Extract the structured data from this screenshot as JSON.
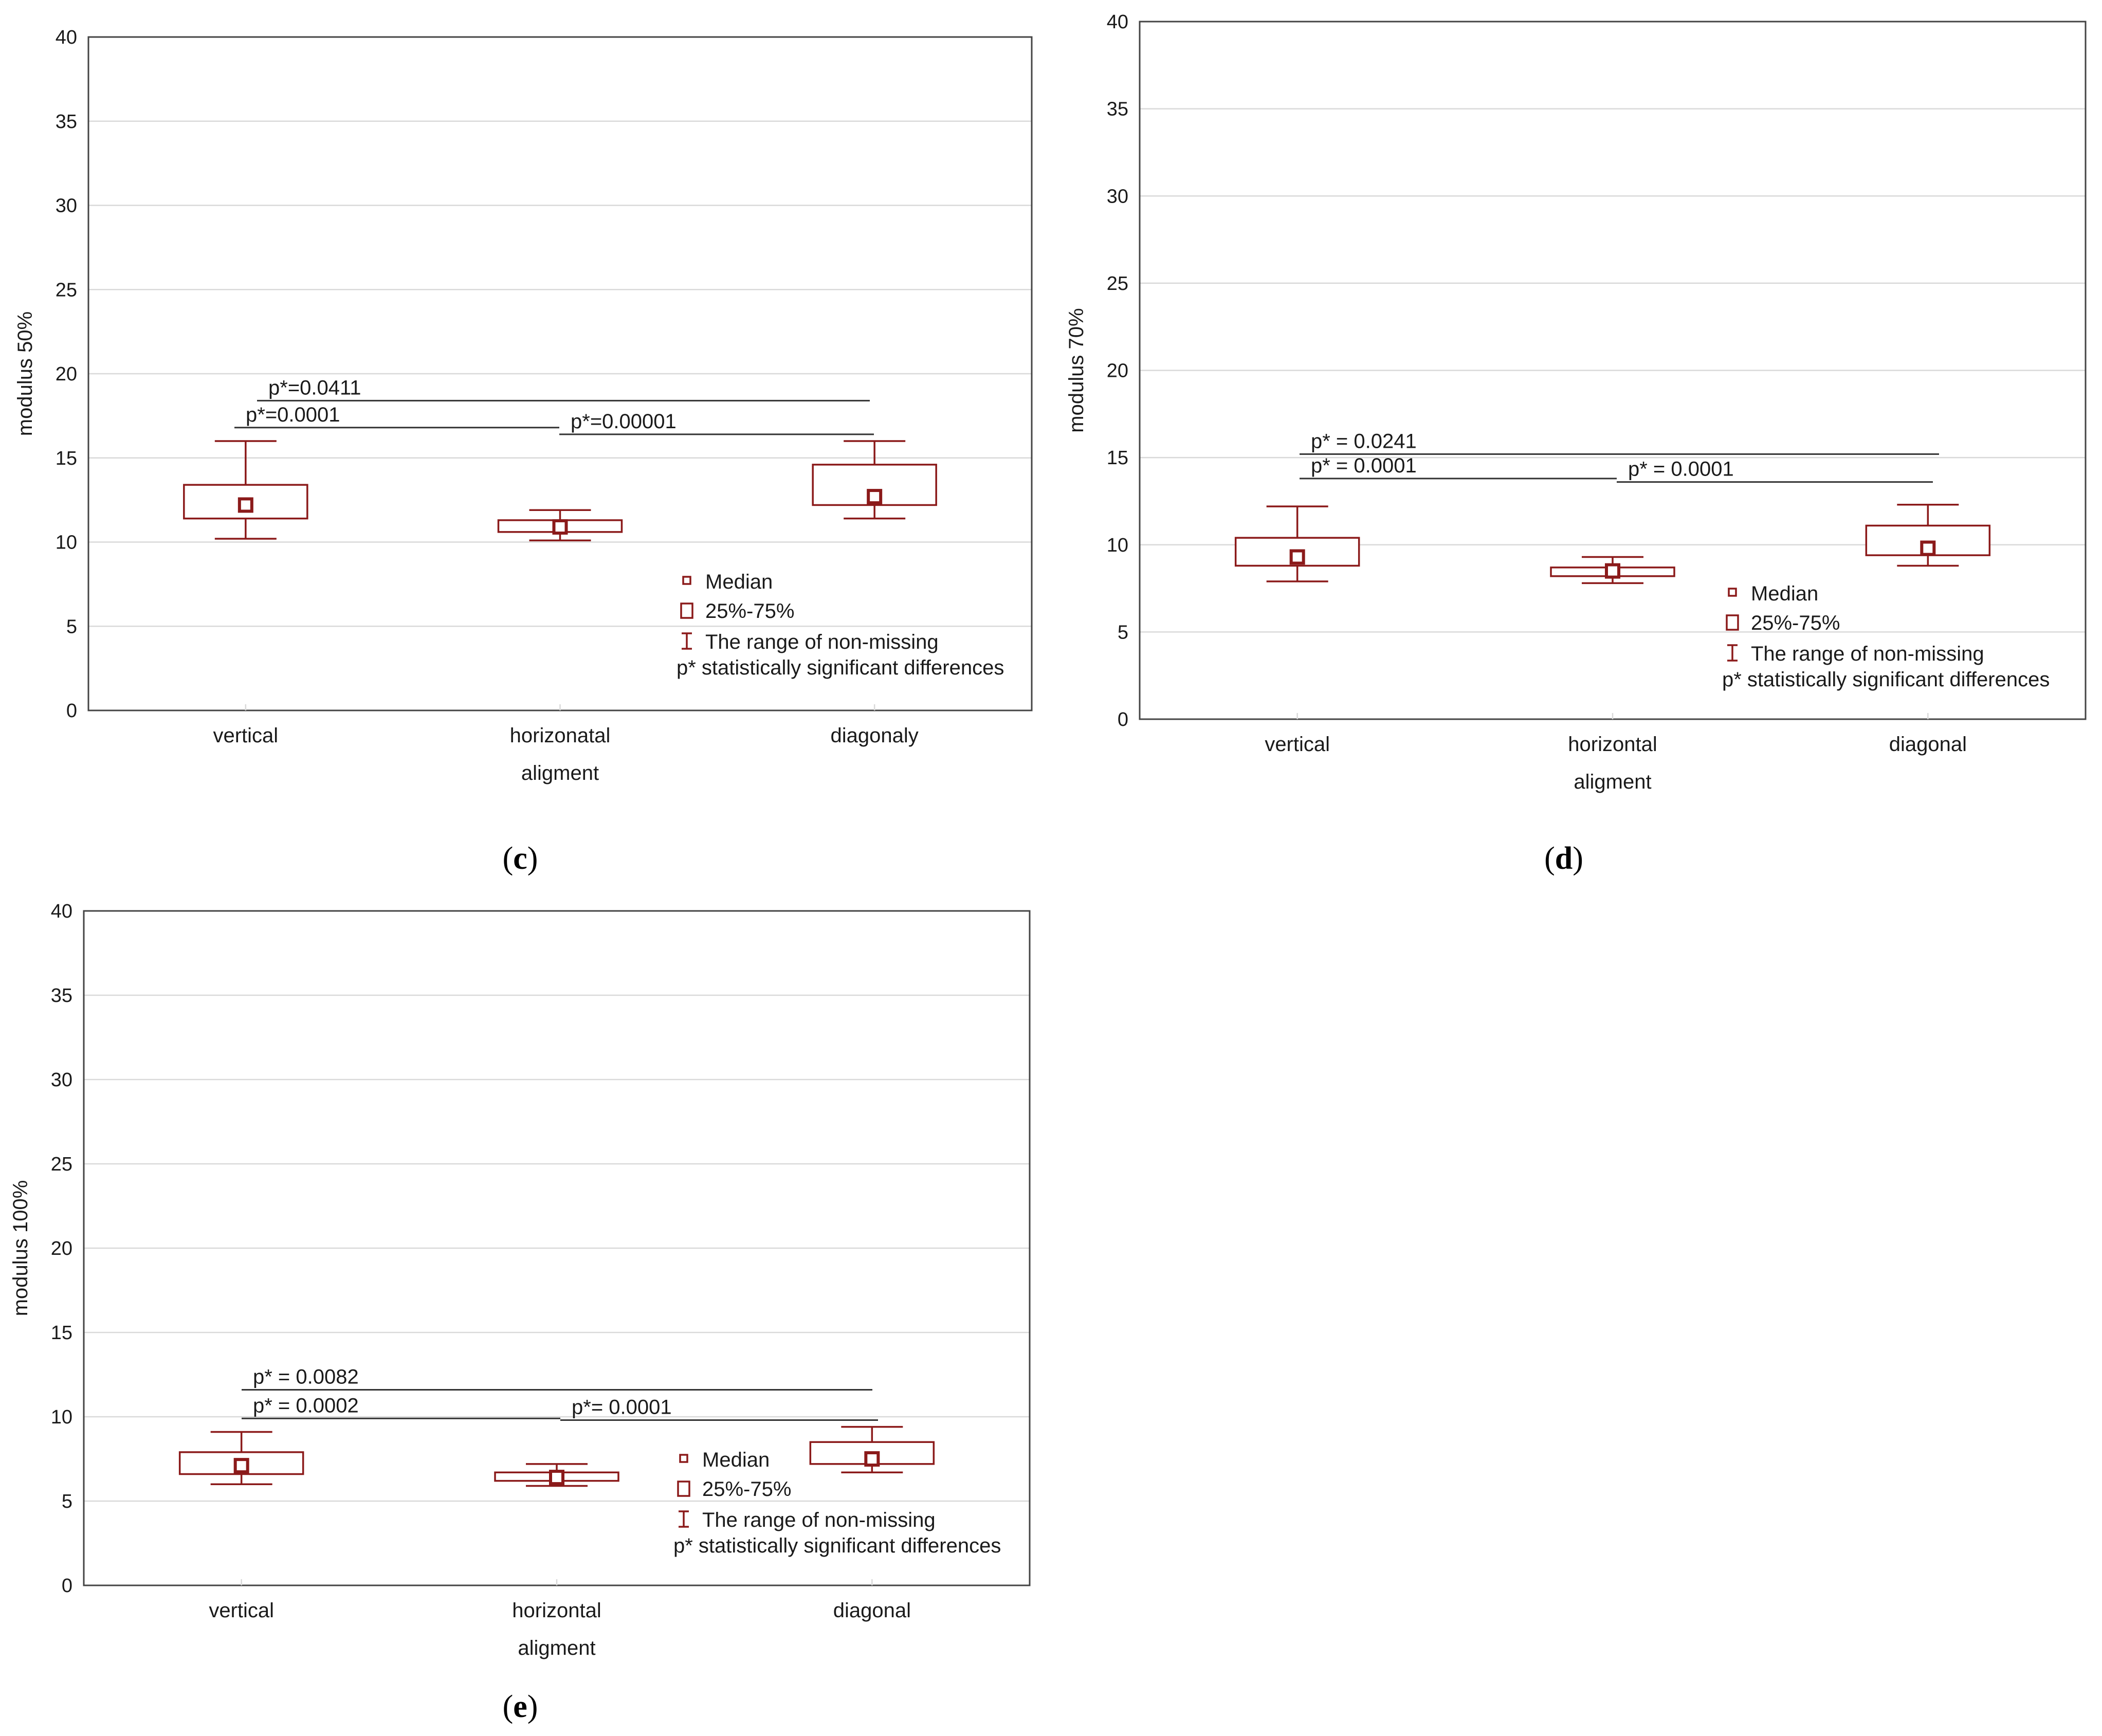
{
  "legend": {
    "median": "Median",
    "iqr": "25%-75%",
    "range": "The range of non-missing",
    "significance": "p* statistically significant differences"
  },
  "colors": {
    "box": "#8b1a1a",
    "grid": "#d9d9d9",
    "frame": "#444444"
  },
  "chart_data": [
    {
      "id": "c",
      "panel_label": {
        "open": "(",
        "letter": "c",
        "close": ")"
      },
      "type": "box",
      "ylabel": "modulus 50%",
      "xlabel": "aligment",
      "ylim": [
        0,
        40
      ],
      "yticks": [
        0,
        5,
        10,
        15,
        20,
        25,
        30,
        35,
        40
      ],
      "categories": [
        "vertical",
        "horizonatal",
        "diagonaly"
      ],
      "series": [
        {
          "name": "vertical",
          "min": 10.2,
          "q1": 11.4,
          "median": 12.2,
          "q3": 13.4,
          "max": 16.0
        },
        {
          "name": "horizonatal",
          "min": 10.1,
          "q1": 10.6,
          "median": 10.9,
          "q3": 11.3,
          "max": 11.9
        },
        {
          "name": "diagonaly",
          "min": 11.4,
          "q1": 12.2,
          "median": 12.7,
          "q3": 14.6,
          "max": 16.0
        }
      ],
      "significance": [
        {
          "from": 0,
          "to": 2,
          "y": 18.4,
          "label": "p*=0.0411"
        },
        {
          "from": 0,
          "to": 1,
          "y": 16.8,
          "label": "p*=0.0001"
        },
        {
          "from": 1,
          "to": 2,
          "y": 16.4,
          "label": "p*=0.00001"
        }
      ]
    },
    {
      "id": "d",
      "panel_label": {
        "open": "(",
        "letter": "d",
        "close": ")"
      },
      "type": "box",
      "ylabel": "modulus 70%",
      "xlabel": "aligment",
      "ylim": [
        0,
        40
      ],
      "yticks": [
        0,
        5,
        10,
        15,
        20,
        25,
        30,
        35,
        40
      ],
      "categories": [
        "vertical",
        "horizontal",
        "diagonal"
      ],
      "series": [
        {
          "name": "vertical",
          "min": 7.9,
          "q1": 8.8,
          "median": 9.3,
          "q3": 10.4,
          "max": 12.2
        },
        {
          "name": "horizontal",
          "min": 7.8,
          "q1": 8.2,
          "median": 8.5,
          "q3": 8.7,
          "max": 9.3
        },
        {
          "name": "diagonal",
          "min": 8.8,
          "q1": 9.4,
          "median": 9.8,
          "q3": 11.1,
          "max": 12.3
        }
      ],
      "significance": [
        {
          "from": 0,
          "to": 2,
          "y": 15.2,
          "label": "p* = 0.0241"
        },
        {
          "from": 0,
          "to": 1,
          "y": 13.8,
          "label": "p* = 0.0001"
        },
        {
          "from": 1,
          "to": 2,
          "y": 13.6,
          "label": "p* = 0.0001"
        }
      ]
    },
    {
      "id": "e",
      "panel_label": {
        "open": "(",
        "letter": "e",
        "close": ")"
      },
      "type": "box",
      "ylabel": "modulus 100%",
      "xlabel": "aligment",
      "ylim": [
        0,
        40
      ],
      "yticks": [
        0,
        5,
        10,
        15,
        20,
        25,
        30,
        35,
        40
      ],
      "categories": [
        "vertical",
        "horizontal",
        "diagonal"
      ],
      "series": [
        {
          "name": "vertical",
          "min": 6.0,
          "q1": 6.6,
          "median": 7.1,
          "q3": 7.9,
          "max": 9.1
        },
        {
          "name": "horizontal",
          "min": 5.9,
          "q1": 6.2,
          "median": 6.4,
          "q3": 6.7,
          "max": 7.2
        },
        {
          "name": "diagonal",
          "min": 6.7,
          "q1": 7.2,
          "median": 7.5,
          "q3": 8.5,
          "max": 9.4
        }
      ],
      "significance": [
        {
          "from": 0,
          "to": 2,
          "y": 11.6,
          "label": "p* = 0.0082"
        },
        {
          "from": 0,
          "to": 1,
          "y": 9.9,
          "label": "p* = 0.0002"
        },
        {
          "from": 1,
          "to": 2,
          "y": 9.8,
          "label": "p*= 0.0001"
        }
      ]
    }
  ]
}
